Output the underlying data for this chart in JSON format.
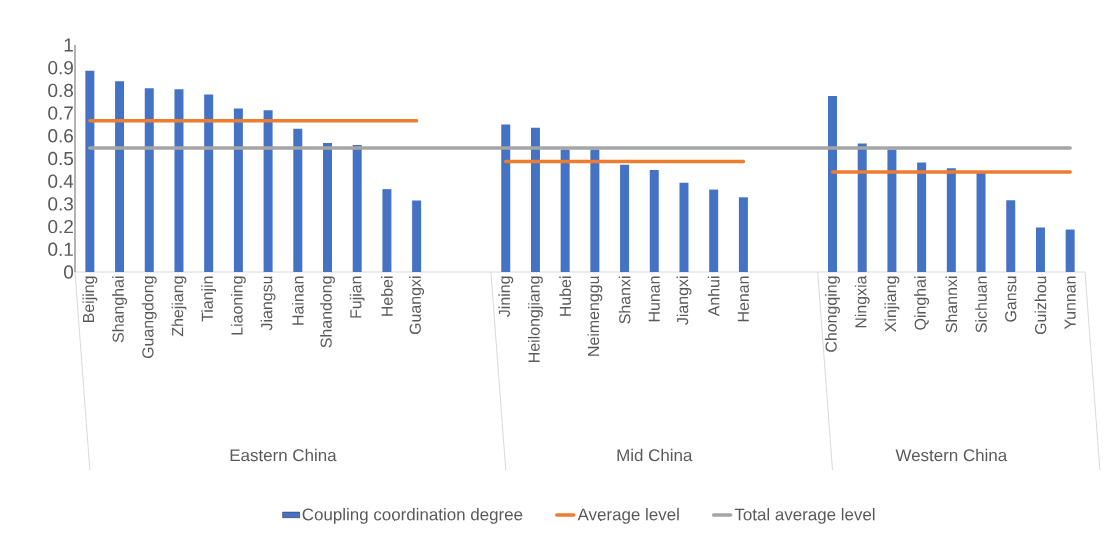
{
  "chart_data": {
    "type": "bar",
    "categories": [
      "Beijing",
      "Shanghai",
      "Guangdong",
      "Zhejiang",
      "Tianjin",
      "Liaoning",
      "Jiangsu",
      "Hainan",
      "Shandong",
      "Fujian",
      "Hebei",
      "Guangxi",
      null,
      null,
      "Jining",
      "Heilongjiang",
      "Hubei",
      "Neimenggu",
      "Shanxi",
      "Hunan",
      "Jiangxi",
      "Anhui",
      "Henan",
      null,
      null,
      "Chongqing",
      "Ningxia",
      "Xinjiang",
      "Qinghai",
      "Shannxi",
      "Sichuan",
      "Gansu",
      "Guizhou",
      "Yunnan"
    ],
    "series": [
      {
        "name": "Coupling coordination  degree",
        "color": "#4472c4",
        "values": [
          0.887,
          0.84,
          0.81,
          0.805,
          0.782,
          0.72,
          0.713,
          0.631,
          0.568,
          0.559,
          0.365,
          0.315,
          null,
          null,
          0.65,
          0.635,
          0.54,
          0.54,
          0.472,
          0.449,
          0.393,
          0.363,
          0.329,
          null,
          null,
          0.775,
          0.566,
          0.54,
          0.482,
          0.457,
          0.441,
          0.316,
          0.196,
          0.187
        ]
      },
      {
        "name": "Average level",
        "type": "line",
        "color": "#ed7d31",
        "values": [
          0.666,
          0.666,
          0.666,
          0.666,
          0.666,
          0.666,
          0.666,
          0.666,
          0.666,
          0.666,
          0.666,
          0.666,
          null,
          null,
          0.487,
          0.487,
          0.487,
          0.487,
          0.487,
          0.487,
          0.487,
          0.487,
          0.487,
          null,
          null,
          0.441,
          0.441,
          0.441,
          0.441,
          0.441,
          0.441,
          0.441,
          0.441,
          0.441
        ]
      },
      {
        "name": "Total average level",
        "type": "line",
        "color": "#a5a5a5",
        "values": [
          0.546,
          0.546,
          0.546,
          0.546,
          0.546,
          0.546,
          0.546,
          0.546,
          0.546,
          0.546,
          0.546,
          0.546,
          0.546,
          0.546,
          0.546,
          0.546,
          0.546,
          0.546,
          0.546,
          0.546,
          0.546,
          0.546,
          0.546,
          0.546,
          0.546,
          0.546,
          0.546,
          0.546,
          0.546,
          0.546,
          0.546,
          0.546,
          0.546,
          0.546
        ]
      }
    ],
    "annotations": [
      "Eastern China",
      "Mid China",
      "Western China"
    ],
    "ylim": [
      0,
      1
    ],
    "yticks": [
      0,
      0.1,
      0.2,
      0.3,
      0.4,
      0.5,
      0.6,
      0.7,
      0.8,
      0.9,
      1
    ],
    "legend": "bottom",
    "marker": "none"
  }
}
